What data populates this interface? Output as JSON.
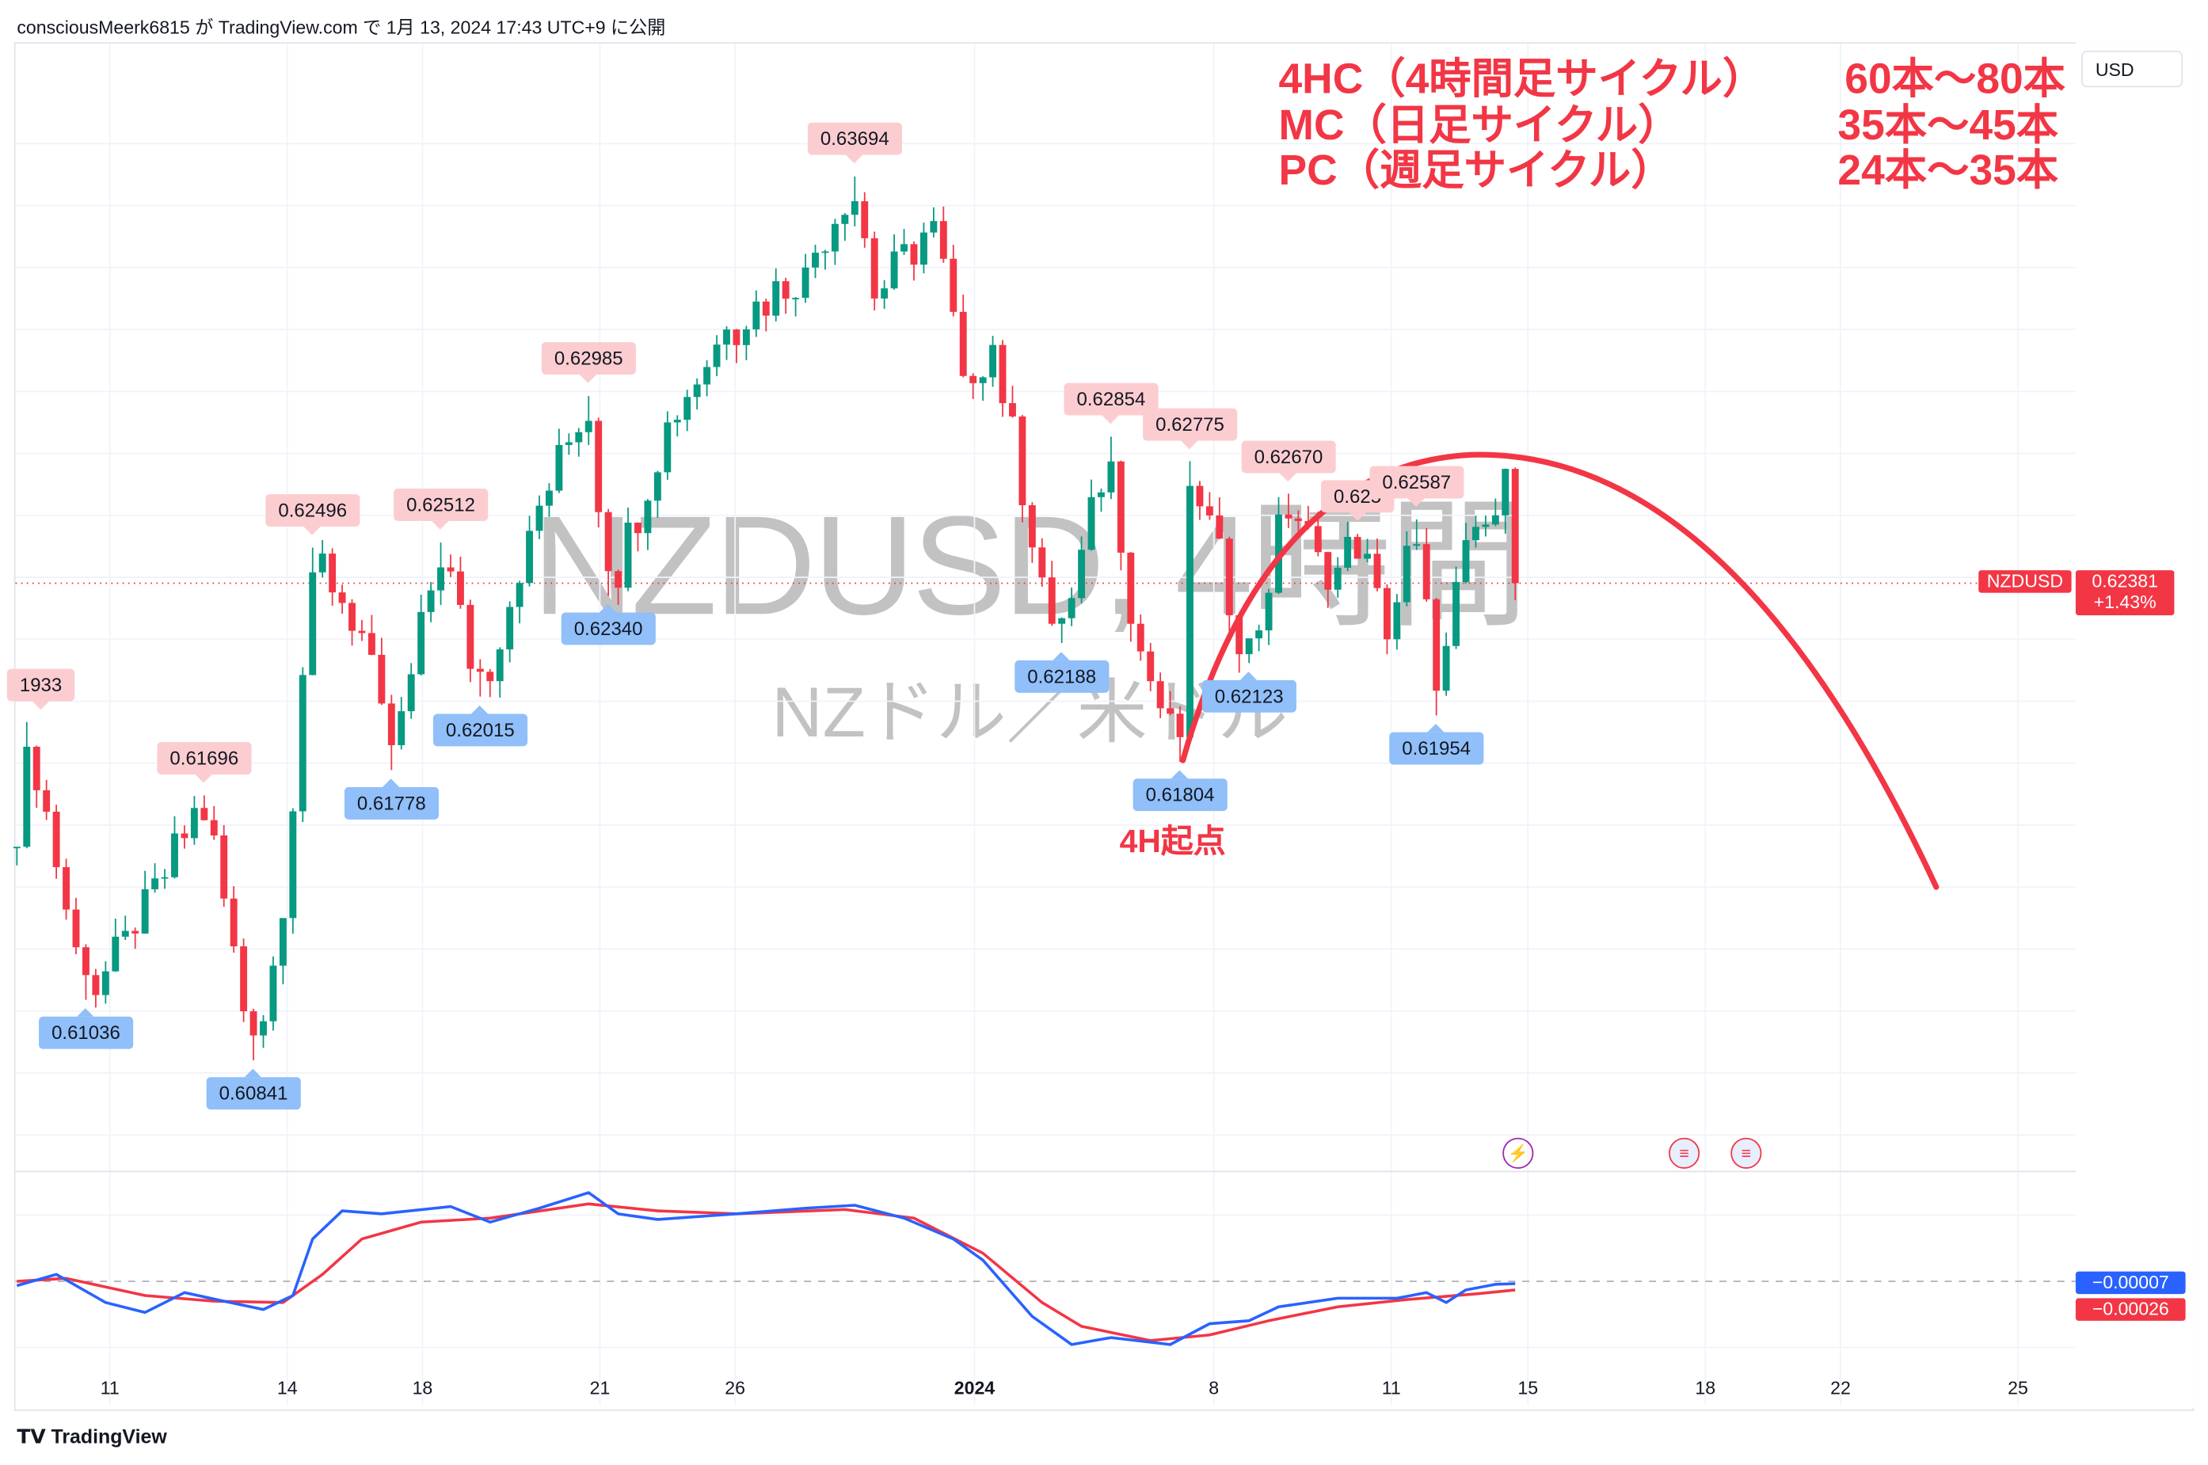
{
  "header": {
    "published": "consciousMeerk6815 が TradingView.com で 1月 13, 2024 17:43 UTC+9 に公開"
  },
  "watermark": {
    "symbol_interval": "NZDUSD, 4時間",
    "description": "NZドル／米ドル"
  },
  "annotations": {
    "lines": [
      {
        "left": "4HC（4時間足サイクル）",
        "right": "60本〜80本"
      },
      {
        "left": "MC（日足サイクル）",
        "right": "35本〜45本"
      },
      {
        "left": "PC（週足サイクル）",
        "right": "24本〜35本"
      }
    ],
    "origin_label": "4H起点",
    "color": "#f23645"
  },
  "currency_button": "USD",
  "footer": {
    "logo": "TradingView"
  },
  "colors": {
    "up": "#089981",
    "down": "#f23645",
    "macd": "#2962ff",
    "signal": "#f23645",
    "cycle_arc": "#f23645"
  },
  "events": [
    {
      "icon": "lightning-icon"
    },
    {
      "icon": "us-flag-icon"
    },
    {
      "icon": "us-flag-icon"
    }
  ],
  "chart_data": [
    {
      "type": "candlestick",
      "symbol": "NZDUSD",
      "interval": "4時間",
      "ylim": [
        0.6052,
        0.6398
      ],
      "y_ticks": [
        "0.63800",
        "0.63600",
        "0.63400",
        "0.63200",
        "0.63000",
        "0.62800",
        "0.62600",
        "0.62400",
        "0.62200",
        "0.62000",
        "0.61800",
        "0.61600",
        "0.61400",
        "0.61200",
        "0.61000",
        "0.60800",
        "0.60600"
      ],
      "x_ticks": [
        "11",
        "14",
        "18",
        "21",
        "26",
        "2024",
        "8",
        "11",
        "15",
        "18",
        "22",
        "25"
      ],
      "price_path": [
        [
          0,
          0.6153
        ],
        [
          1,
          0.61933
        ],
        [
          7,
          0.61036
        ],
        [
          12,
          0.6125
        ],
        [
          19,
          0.61696
        ],
        [
          24,
          0.60841
        ],
        [
          27,
          0.613
        ],
        [
          30,
          0.62496
        ],
        [
          35,
          0.6222
        ],
        [
          38,
          0.61778
        ],
        [
          43,
          0.62512
        ],
        [
          47,
          0.62015
        ],
        [
          52,
          0.6255
        ],
        [
          58,
          0.62985
        ],
        [
          60,
          0.6234
        ],
        [
          66,
          0.629
        ],
        [
          72,
          0.632
        ],
        [
          80,
          0.634
        ],
        [
          85,
          0.63694
        ],
        [
          87,
          0.633
        ],
        [
          93,
          0.6355
        ],
        [
          96,
          0.6305
        ],
        [
          99,
          0.6315
        ],
        [
          105,
          0.6225
        ],
        [
          106,
          0.62188
        ],
        [
          111,
          0.62854
        ],
        [
          113,
          0.6225
        ],
        [
          118,
          0.61804
        ],
        [
          119,
          0.62775
        ],
        [
          125,
          0.62123
        ],
        [
          129,
          0.6267
        ],
        [
          133,
          0.6236
        ],
        [
          136,
          0.6254
        ],
        [
          139,
          0.622
        ],
        [
          142,
          0.62587
        ],
        [
          144,
          0.61954
        ],
        [
          147,
          0.6252
        ],
        [
          150,
          0.626
        ],
        [
          151,
          0.6275
        ],
        [
          152,
          0.62381
        ]
      ],
      "swing_labels": [
        {
          "bar": 1,
          "value": "0.61933",
          "kind": "high",
          "shown": "1933"
        },
        {
          "bar": 7,
          "value": "0.61036",
          "kind": "low"
        },
        {
          "bar": 19,
          "value": "0.61696",
          "kind": "high"
        },
        {
          "bar": 24,
          "value": "0.60841",
          "kind": "low"
        },
        {
          "bar": 30,
          "value": "0.62496",
          "kind": "high"
        },
        {
          "bar": 38,
          "value": "0.61778",
          "kind": "low"
        },
        {
          "bar": 43,
          "value": "0.62512",
          "kind": "high"
        },
        {
          "bar": 47,
          "value": "0.62015",
          "kind": "low"
        },
        {
          "bar": 58,
          "value": "0.62985",
          "kind": "high"
        },
        {
          "bar": 60,
          "value": "0.62340",
          "kind": "low"
        },
        {
          "bar": 85,
          "value": "0.63694",
          "kind": "high"
        },
        {
          "bar": 106,
          "value": "0.62188",
          "kind": "low"
        },
        {
          "bar": 111,
          "value": "0.62854",
          "kind": "high"
        },
        {
          "bar": 118,
          "value": "0.61804",
          "kind": "low"
        },
        {
          "bar": 119,
          "value": "0.62775",
          "kind": "high"
        },
        {
          "bar": 125,
          "value": "0.62123",
          "kind": "low"
        },
        {
          "bar": 129,
          "value": "0.62670",
          "kind": "high"
        },
        {
          "bar": 136,
          "value": "0.625",
          "kind": "high"
        },
        {
          "bar": 142,
          "value": "0.62587",
          "kind": "high"
        },
        {
          "bar": 144,
          "value": "0.61954",
          "kind": "low"
        }
      ],
      "last_price": {
        "symbol": "NZDUSD",
        "price": "0.62381",
        "change": "+1.43%",
        "value": 0.62381
      }
    },
    {
      "type": "line",
      "name": "MACD",
      "ylim": [
        -0.0025,
        0.0028
      ],
      "y_ticks": [
        "0.00200",
        "-0.00200"
      ],
      "macd": [
        [
          0,
          -0.00013
        ],
        [
          4,
          0.00021
        ],
        [
          9,
          -0.00064
        ],
        [
          13,
          -0.00094
        ],
        [
          17,
          -0.00034
        ],
        [
          21,
          -0.0006
        ],
        [
          25,
          -0.00085
        ],
        [
          28,
          -0.00043
        ],
        [
          30,
          0.00128
        ],
        [
          33,
          0.00213
        ],
        [
          37,
          0.00204
        ],
        [
          44,
          0.00226
        ],
        [
          48,
          0.00179
        ],
        [
          53,
          0.00221
        ],
        [
          58,
          0.00268
        ],
        [
          61,
          0.00204
        ],
        [
          65,
          0.00187
        ],
        [
          73,
          0.00204
        ],
        [
          80,
          0.00221
        ],
        [
          85,
          0.0023
        ],
        [
          90,
          0.00191
        ],
        [
          95,
          0.00128
        ],
        [
          98,
          0.00064
        ],
        [
          103,
          -0.00106
        ],
        [
          107,
          -0.00191
        ],
        [
          111,
          -0.0017
        ],
        [
          117,
          -0.00191
        ],
        [
          121,
          -0.00128
        ],
        [
          125,
          -0.00119
        ],
        [
          128,
          -0.00077
        ],
        [
          134,
          -0.00051
        ],
        [
          140,
          -0.00051
        ],
        [
          143,
          -0.00034
        ],
        [
          145,
          -0.00064
        ],
        [
          147,
          -0.00026
        ],
        [
          150,
          -9e-05
        ],
        [
          152,
          -7e-05
        ]
      ],
      "signal": [
        [
          0,
          0
        ],
        [
          5,
          9e-05
        ],
        [
          13,
          -0.00043
        ],
        [
          20,
          -0.0006
        ],
        [
          27,
          -0.00064
        ],
        [
          31,
          0.00021
        ],
        [
          35,
          0.00128
        ],
        [
          41,
          0.00179
        ],
        [
          48,
          0.00191
        ],
        [
          58,
          0.00234
        ],
        [
          65,
          0.00213
        ],
        [
          73,
          0.00204
        ],
        [
          84,
          0.00217
        ],
        [
          91,
          0.00191
        ],
        [
          98,
          0.00085
        ],
        [
          104,
          -0.00064
        ],
        [
          108,
          -0.00136
        ],
        [
          115,
          -0.00179
        ],
        [
          121,
          -0.00162
        ],
        [
          127,
          -0.00119
        ],
        [
          134,
          -0.00077
        ],
        [
          141,
          -0.00055
        ],
        [
          148,
          -0.00038
        ],
        [
          152,
          -0.00026
        ]
      ],
      "last_values": {
        "macd": "−0.00007",
        "signal": "−0.00026"
      }
    }
  ]
}
